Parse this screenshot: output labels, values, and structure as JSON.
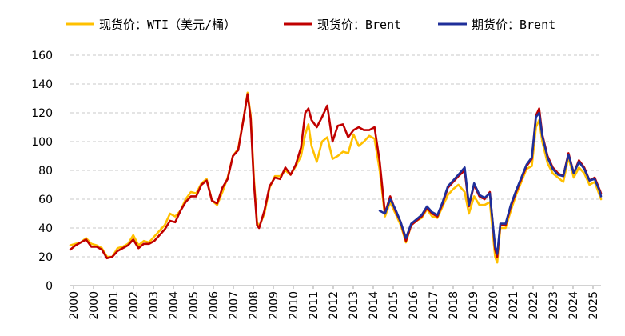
{
  "chart_data": {
    "type": "line",
    "title": "",
    "xlabel": "",
    "ylabel": "",
    "xlim": [
      2000,
      2025.3
    ],
    "ylim": [
      0,
      160
    ],
    "yticks": [
      "0",
      "20",
      "40",
      "60",
      "80",
      "100",
      "120",
      "140",
      "160"
    ],
    "xticks": [
      "2000",
      "2000",
      "2001",
      "2002",
      "2003",
      "2004",
      "2005",
      "2006",
      "2007",
      "2008",
      "2009",
      "2010",
      "2011",
      "2012",
      "2013",
      "2014",
      "2015",
      "2016",
      "2017",
      "2018",
      "2019",
      "2020",
      "2021",
      "2022",
      "2023",
      "2024",
      "2025"
    ],
    "grid": "horizontal dashed",
    "legend_position": "top",
    "colors": {
      "wti": "#FFC000",
      "brent_spot": "#C00000",
      "brent_futures": "#1F2F9A"
    },
    "series": [
      {
        "name": "现货价：WTI（美元/桶）",
        "points": [
          [
            2000.0,
            28
          ],
          [
            2000.25,
            29
          ],
          [
            2000.5,
            30
          ],
          [
            2000.75,
            33
          ],
          [
            2001.0,
            29
          ],
          [
            2001.25,
            28
          ],
          [
            2001.5,
            26
          ],
          [
            2001.75,
            20
          ],
          [
            2002.0,
            20
          ],
          [
            2002.25,
            26
          ],
          [
            2002.5,
            27
          ],
          [
            2002.75,
            29
          ],
          [
            2003.0,
            35
          ],
          [
            2003.25,
            28
          ],
          [
            2003.5,
            31
          ],
          [
            2003.75,
            30
          ],
          [
            2004.0,
            34
          ],
          [
            2004.25,
            38
          ],
          [
            2004.5,
            42
          ],
          [
            2004.75,
            50
          ],
          [
            2005.0,
            48
          ],
          [
            2005.25,
            52
          ],
          [
            2005.5,
            60
          ],
          [
            2005.75,
            65
          ],
          [
            2006.0,
            64
          ],
          [
            2006.25,
            71
          ],
          [
            2006.5,
            74
          ],
          [
            2006.75,
            59
          ],
          [
            2007.0,
            56
          ],
          [
            2007.25,
            65
          ],
          [
            2007.5,
            75
          ],
          [
            2007.75,
            90
          ],
          [
            2008.0,
            95
          ],
          [
            2008.25,
            115
          ],
          [
            2008.45,
            134
          ],
          [
            2008.6,
            118
          ],
          [
            2008.75,
            75
          ],
          [
            2008.9,
            44
          ],
          [
            2009.0,
            41
          ],
          [
            2009.25,
            50
          ],
          [
            2009.5,
            68
          ],
          [
            2009.75,
            76
          ],
          [
            2010.0,
            76
          ],
          [
            2010.25,
            80
          ],
          [
            2010.5,
            77
          ],
          [
            2010.75,
            83
          ],
          [
            2011.0,
            90
          ],
          [
            2011.2,
            105
          ],
          [
            2011.35,
            112
          ],
          [
            2011.5,
            97
          ],
          [
            2011.75,
            86
          ],
          [
            2012.0,
            100
          ],
          [
            2012.25,
            103
          ],
          [
            2012.5,
            88
          ],
          [
            2012.75,
            90
          ],
          [
            2013.0,
            93
          ],
          [
            2013.25,
            92
          ],
          [
            2013.5,
            105
          ],
          [
            2013.75,
            97
          ],
          [
            2014.0,
            100
          ],
          [
            2014.25,
            104
          ],
          [
            2014.5,
            102
          ],
          [
            2014.75,
            80
          ],
          [
            2015.0,
            48
          ],
          [
            2015.25,
            58
          ],
          [
            2015.5,
            50
          ],
          [
            2015.75,
            42
          ],
          [
            2016.0,
            30
          ],
          [
            2016.25,
            42
          ],
          [
            2016.5,
            45
          ],
          [
            2016.75,
            47
          ],
          [
            2017.0,
            53
          ],
          [
            2017.25,
            48
          ],
          [
            2017.5,
            47
          ],
          [
            2017.75,
            55
          ],
          [
            2018.0,
            63
          ],
          [
            2018.25,
            67
          ],
          [
            2018.5,
            70
          ],
          [
            2018.8,
            65
          ],
          [
            2019.0,
            50
          ],
          [
            2019.25,
            62
          ],
          [
            2019.5,
            56
          ],
          [
            2019.75,
            56
          ],
          [
            2020.0,
            58
          ],
          [
            2020.25,
            20
          ],
          [
            2020.35,
            16
          ],
          [
            2020.5,
            40
          ],
          [
            2020.75,
            40
          ],
          [
            2021.0,
            52
          ],
          [
            2021.25,
            63
          ],
          [
            2021.5,
            72
          ],
          [
            2021.75,
            81
          ],
          [
            2022.0,
            83
          ],
          [
            2022.2,
            110
          ],
          [
            2022.35,
            115
          ],
          [
            2022.5,
            100
          ],
          [
            2022.75,
            85
          ],
          [
            2023.0,
            78
          ],
          [
            2023.25,
            75
          ],
          [
            2023.5,
            72
          ],
          [
            2023.75,
            89
          ],
          [
            2024.0,
            75
          ],
          [
            2024.25,
            82
          ],
          [
            2024.5,
            78
          ],
          [
            2024.75,
            70
          ],
          [
            2025.0,
            72
          ],
          [
            2025.25,
            62
          ],
          [
            2025.3,
            60
          ]
        ]
      },
      {
        "name": "现货价：Brent",
        "points": [
          [
            2000.0,
            25
          ],
          [
            2000.25,
            28
          ],
          [
            2000.5,
            30
          ],
          [
            2000.75,
            32
          ],
          [
            2001.0,
            27
          ],
          [
            2001.25,
            27
          ],
          [
            2001.5,
            25
          ],
          [
            2001.75,
            19
          ],
          [
            2002.0,
            20
          ],
          [
            2002.25,
            24
          ],
          [
            2002.5,
            26
          ],
          [
            2002.75,
            28
          ],
          [
            2003.0,
            32
          ],
          [
            2003.25,
            26
          ],
          [
            2003.5,
            29
          ],
          [
            2003.75,
            29
          ],
          [
            2004.0,
            31
          ],
          [
            2004.25,
            35
          ],
          [
            2004.5,
            39
          ],
          [
            2004.75,
            45
          ],
          [
            2005.0,
            44
          ],
          [
            2005.25,
            52
          ],
          [
            2005.5,
            58
          ],
          [
            2005.75,
            62
          ],
          [
            2006.0,
            62
          ],
          [
            2006.25,
            70
          ],
          [
            2006.5,
            73
          ],
          [
            2006.75,
            59
          ],
          [
            2007.0,
            57
          ],
          [
            2007.25,
            68
          ],
          [
            2007.5,
            74
          ],
          [
            2007.75,
            90
          ],
          [
            2008.0,
            94
          ],
          [
            2008.25,
            115
          ],
          [
            2008.45,
            133
          ],
          [
            2008.6,
            116
          ],
          [
            2008.75,
            72
          ],
          [
            2008.9,
            42
          ],
          [
            2009.0,
            40
          ],
          [
            2009.25,
            52
          ],
          [
            2009.5,
            69
          ],
          [
            2009.75,
            75
          ],
          [
            2010.0,
            74
          ],
          [
            2010.25,
            82
          ],
          [
            2010.5,
            77
          ],
          [
            2010.75,
            84
          ],
          [
            2011.0,
            96
          ],
          [
            2011.2,
            120
          ],
          [
            2011.35,
            123
          ],
          [
            2011.5,
            115
          ],
          [
            2011.75,
            110
          ],
          [
            2012.0,
            117
          ],
          [
            2012.25,
            125
          ],
          [
            2012.5,
            100
          ],
          [
            2012.75,
            111
          ],
          [
            2013.0,
            112
          ],
          [
            2013.25,
            103
          ],
          [
            2013.5,
            108
          ],
          [
            2013.75,
            110
          ],
          [
            2014.0,
            108
          ],
          [
            2014.25,
            108
          ],
          [
            2014.5,
            110
          ],
          [
            2014.75,
            86
          ],
          [
            2015.0,
            50
          ],
          [
            2015.25,
            62
          ],
          [
            2015.5,
            52
          ],
          [
            2015.75,
            44
          ],
          [
            2016.0,
            31
          ],
          [
            2016.25,
            42
          ],
          [
            2016.5,
            45
          ],
          [
            2016.75,
            48
          ],
          [
            2017.0,
            54
          ],
          [
            2017.25,
            50
          ],
          [
            2017.5,
            48
          ],
          [
            2017.75,
            57
          ],
          [
            2018.0,
            68
          ],
          [
            2018.25,
            72
          ],
          [
            2018.5,
            76
          ],
          [
            2018.8,
            80
          ],
          [
            2019.0,
            55
          ],
          [
            2019.25,
            70
          ],
          [
            2019.5,
            62
          ],
          [
            2019.75,
            60
          ],
          [
            2020.0,
            65
          ],
          [
            2020.25,
            25
          ],
          [
            2020.35,
            20
          ],
          [
            2020.5,
            42
          ],
          [
            2020.75,
            42
          ],
          [
            2021.0,
            55
          ],
          [
            2021.25,
            65
          ],
          [
            2021.5,
            74
          ],
          [
            2021.75,
            83
          ],
          [
            2022.0,
            88
          ],
          [
            2022.2,
            118
          ],
          [
            2022.35,
            123
          ],
          [
            2022.5,
            105
          ],
          [
            2022.75,
            90
          ],
          [
            2023.0,
            82
          ],
          [
            2023.25,
            78
          ],
          [
            2023.5,
            76
          ],
          [
            2023.75,
            92
          ],
          [
            2024.0,
            78
          ],
          [
            2024.25,
            87
          ],
          [
            2024.5,
            82
          ],
          [
            2024.75,
            73
          ],
          [
            2025.0,
            75
          ],
          [
            2025.25,
            66
          ],
          [
            2025.3,
            64
          ]
        ]
      },
      {
        "name": "期货价：Brent",
        "points": [
          [
            2014.75,
            52
          ],
          [
            2015.0,
            50
          ],
          [
            2015.25,
            60
          ],
          [
            2015.5,
            53
          ],
          [
            2015.75,
            44
          ],
          [
            2016.0,
            33
          ],
          [
            2016.25,
            43
          ],
          [
            2016.5,
            46
          ],
          [
            2016.75,
            49
          ],
          [
            2017.0,
            55
          ],
          [
            2017.25,
            51
          ],
          [
            2017.5,
            49
          ],
          [
            2017.75,
            58
          ],
          [
            2018.0,
            69
          ],
          [
            2018.25,
            73
          ],
          [
            2018.5,
            77
          ],
          [
            2018.8,
            82
          ],
          [
            2019.0,
            56
          ],
          [
            2019.25,
            71
          ],
          [
            2019.5,
            63
          ],
          [
            2019.75,
            61
          ],
          [
            2020.0,
            64
          ],
          [
            2020.25,
            27
          ],
          [
            2020.35,
            22
          ],
          [
            2020.5,
            43
          ],
          [
            2020.75,
            43
          ],
          [
            2021.0,
            56
          ],
          [
            2021.25,
            66
          ],
          [
            2021.5,
            75
          ],
          [
            2021.75,
            84
          ],
          [
            2022.0,
            89
          ],
          [
            2022.2,
            117
          ],
          [
            2022.35,
            120
          ],
          [
            2022.5,
            104
          ],
          [
            2022.75,
            89
          ],
          [
            2023.0,
            81
          ],
          [
            2023.25,
            77
          ],
          [
            2023.5,
            76
          ],
          [
            2023.75,
            91
          ],
          [
            2024.0,
            78
          ],
          [
            2024.25,
            86
          ],
          [
            2024.5,
            81
          ],
          [
            2024.75,
            73
          ],
          [
            2025.0,
            74
          ],
          [
            2025.25,
            65
          ],
          [
            2025.3,
            62
          ]
        ]
      }
    ]
  }
}
